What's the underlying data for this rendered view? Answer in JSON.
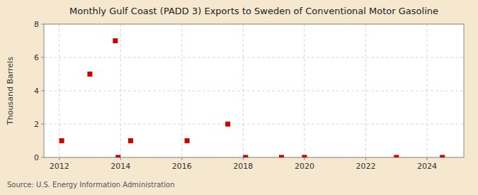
{
  "chart_data": {
    "type": "scatter",
    "title": "Monthly Gulf Coast (PADD 3) Exports to Sweden of Conventional Motor Gasoline",
    "ylabel": "Thousand Barrels",
    "source": "Source: U.S. Energy Information Administration",
    "x": [
      2012.08,
      2013.0,
      2013.83,
      2013.92,
      2014.33,
      2016.17,
      2017.5,
      2018.08,
      2019.25,
      2020.0,
      2023.0,
      2024.5
    ],
    "values": [
      1,
      5,
      7,
      0,
      1,
      1,
      2,
      0,
      0,
      0,
      0,
      0
    ],
    "color": "#cc0000",
    "marker": "square",
    "xlim": [
      2011.5,
      2025.2
    ],
    "ylim": [
      0,
      8
    ],
    "xticks": [
      2012,
      2014,
      2016,
      2018,
      2020,
      2022,
      2024
    ],
    "yticks": [
      0,
      2,
      4,
      6,
      8
    ],
    "grid": true
  }
}
